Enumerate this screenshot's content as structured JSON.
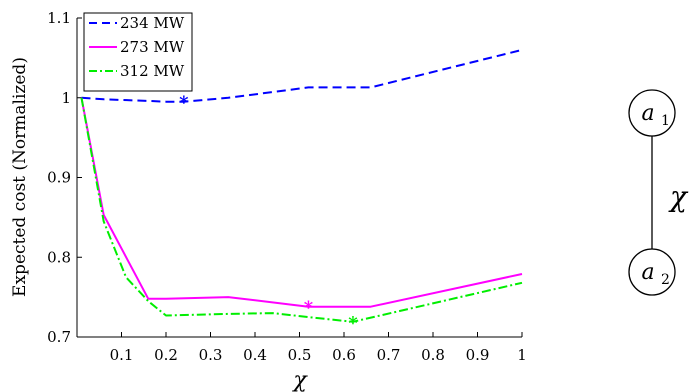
{
  "chart_data": {
    "type": "line",
    "xlabel": "χ",
    "ylabel": "Expected cost (Normalized)",
    "xlim": [
      0,
      1
    ],
    "ylim": [
      0.7,
      1.1
    ],
    "xticks": [
      "0.1",
      "0.2",
      "0.3",
      "0.4",
      "0.5",
      "0.6",
      "0.7",
      "0.8",
      "0.9",
      "1"
    ],
    "xtick_values": [
      0.1,
      0.2,
      0.3,
      0.4,
      0.5,
      0.6,
      0.7,
      0.8,
      0.9,
      1.0
    ],
    "yticks": [
      "0.7",
      "0.8",
      "0.9",
      "1",
      "1.1"
    ],
    "ytick_values": [
      0.7,
      0.8,
      0.9,
      1.0,
      1.1
    ],
    "grid": false,
    "legend_position": "top-left",
    "series": [
      {
        "name": "234 MW",
        "color": "#0000ff",
        "dash": "dashed",
        "x": [
          0.01,
          0.06,
          0.16,
          0.2,
          0.24,
          0.34,
          0.52,
          0.62,
          0.66,
          1.0
        ],
        "y": [
          1.0,
          0.998,
          0.996,
          0.995,
          0.995,
          1.0,
          1.013,
          1.013,
          1.013,
          1.06
        ],
        "marker": {
          "x": 0.24,
          "y": 0.995
        }
      },
      {
        "name": "273 MW",
        "color": "#ff00ff",
        "dash": "solid",
        "x": [
          0.01,
          0.06,
          0.16,
          0.2,
          0.34,
          0.52,
          0.62,
          0.66,
          1.0
        ],
        "y": [
          1.0,
          0.853,
          0.748,
          0.748,
          0.75,
          0.738,
          0.738,
          0.738,
          0.779
        ],
        "marker": {
          "x": 0.52,
          "y": 0.738
        }
      },
      {
        "name": "312 MW",
        "color": "#00ee00",
        "dash": "dashdot",
        "x": [
          0.01,
          0.06,
          0.11,
          0.16,
          0.2,
          0.34,
          0.44,
          0.52,
          0.62,
          1.0
        ],
        "y": [
          1.0,
          0.845,
          0.775,
          0.745,
          0.727,
          0.729,
          0.73,
          0.725,
          0.719,
          0.768
        ],
        "marker": {
          "x": 0.62,
          "y": 0.719
        }
      }
    ]
  },
  "diagram": {
    "top_node_base": "a",
    "top_node_sub": "1",
    "bottom_node_base": "a",
    "bottom_node_sub": "2",
    "edge_label": "χ"
  }
}
